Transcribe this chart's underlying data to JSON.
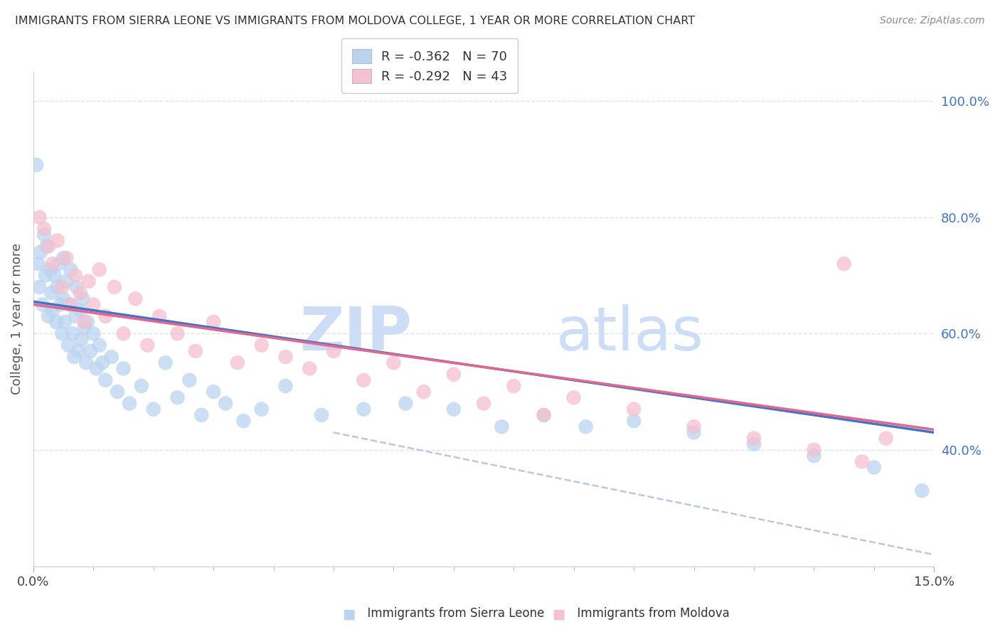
{
  "title": "IMMIGRANTS FROM SIERRA LEONE VS IMMIGRANTS FROM MOLDOVA COLLEGE, 1 YEAR OR MORE CORRELATION CHART",
  "source": "Source: ZipAtlas.com",
  "ylabel": "College, 1 year or more",
  "legend1_label": "R = -0.362   N = 70",
  "legend2_label": "R = -0.292   N = 43",
  "legend1_color": "#bad4f0",
  "legend2_color": "#f5c0d0",
  "sierra_leone_color": "#bad4f0",
  "moldova_color": "#f5c0d0",
  "trendline1_color": "#4472c4",
  "trendline2_color": "#e06890",
  "dashed_color": "#b8c8e0",
  "watermark_zip": "ZIP",
  "watermark_atlas": "atlas",
  "watermark_color": "#ccddf5",
  "background_color": "#ffffff",
  "grid_color": "#d8e4f0",
  "sierra_leone_x": [
    0.05,
    0.08,
    0.1,
    0.12,
    0.15,
    0.18,
    0.2,
    0.22,
    0.25,
    0.28,
    0.3,
    0.32,
    0.35,
    0.38,
    0.4,
    0.42,
    0.45,
    0.48,
    0.5,
    0.5,
    0.52,
    0.55,
    0.58,
    0.6,
    0.62,
    0.65,
    0.68,
    0.7,
    0.72,
    0.75,
    0.78,
    0.8,
    0.82,
    0.85,
    0.88,
    0.9,
    0.95,
    1.0,
    1.05,
    1.1,
    1.15,
    1.2,
    1.3,
    1.4,
    1.5,
    1.6,
    1.8,
    2.0,
    2.2,
    2.4,
    2.6,
    2.8,
    3.0,
    3.2,
    3.5,
    3.8,
    4.2,
    4.8,
    5.5,
    6.2,
    7.0,
    7.8,
    8.5,
    9.2,
    10.0,
    11.0,
    12.0,
    13.0,
    14.0,
    14.8
  ],
  "sierra_leone_y": [
    89,
    72,
    68,
    74,
    65,
    77,
    70,
    75,
    63,
    71,
    67,
    64,
    70,
    62,
    68,
    72,
    65,
    60,
    66,
    73,
    62,
    69,
    58,
    65,
    71,
    60,
    56,
    63,
    68,
    57,
    64,
    59,
    66,
    61,
    55,
    62,
    57,
    60,
    54,
    58,
    55,
    52,
    56,
    50,
    54,
    48,
    51,
    47,
    55,
    49,
    52,
    46,
    50,
    48,
    45,
    47,
    51,
    46,
    47,
    48,
    47,
    44,
    46,
    44,
    45,
    43,
    41,
    39,
    37,
    33
  ],
  "moldova_x": [
    0.1,
    0.18,
    0.25,
    0.32,
    0.4,
    0.48,
    0.55,
    0.62,
    0.7,
    0.78,
    0.85,
    0.92,
    1.0,
    1.1,
    1.2,
    1.35,
    1.5,
    1.7,
    1.9,
    2.1,
    2.4,
    2.7,
    3.0,
    3.4,
    3.8,
    4.2,
    4.6,
    5.0,
    5.5,
    6.0,
    6.5,
    7.0,
    7.5,
    8.0,
    8.5,
    9.0,
    10.0,
    11.0,
    12.0,
    13.0,
    13.5,
    13.8,
    14.2
  ],
  "moldova_y": [
    80,
    78,
    75,
    72,
    76,
    68,
    73,
    65,
    70,
    67,
    62,
    69,
    65,
    71,
    63,
    68,
    60,
    66,
    58,
    63,
    60,
    57,
    62,
    55,
    58,
    56,
    54,
    57,
    52,
    55,
    50,
    53,
    48,
    51,
    46,
    49,
    47,
    44,
    42,
    40,
    72,
    38,
    42
  ],
  "xlim": [
    0,
    15
  ],
  "ylim": [
    20,
    105
  ],
  "xticklabels": [
    "0.0%",
    "15.0%"
  ],
  "yticklabels_right": [
    "100.0%",
    "80.0%",
    "60.0%",
    "40.0%"
  ],
  "yticklabels_right_vals": [
    100,
    80,
    60,
    40
  ],
  "trendline1_x0": 0.0,
  "trendline1_y0": 65.5,
  "trendline1_x1": 15.0,
  "trendline1_y1": 43.0,
  "trendline2_x0": 0.0,
  "trendline2_y0": 65.0,
  "trendline2_x1": 15.0,
  "trendline2_y1": 43.5,
  "dash_x0": 5.0,
  "dash_y0": 43.0,
  "dash_x1": 15.0,
  "dash_y1": 22.0
}
